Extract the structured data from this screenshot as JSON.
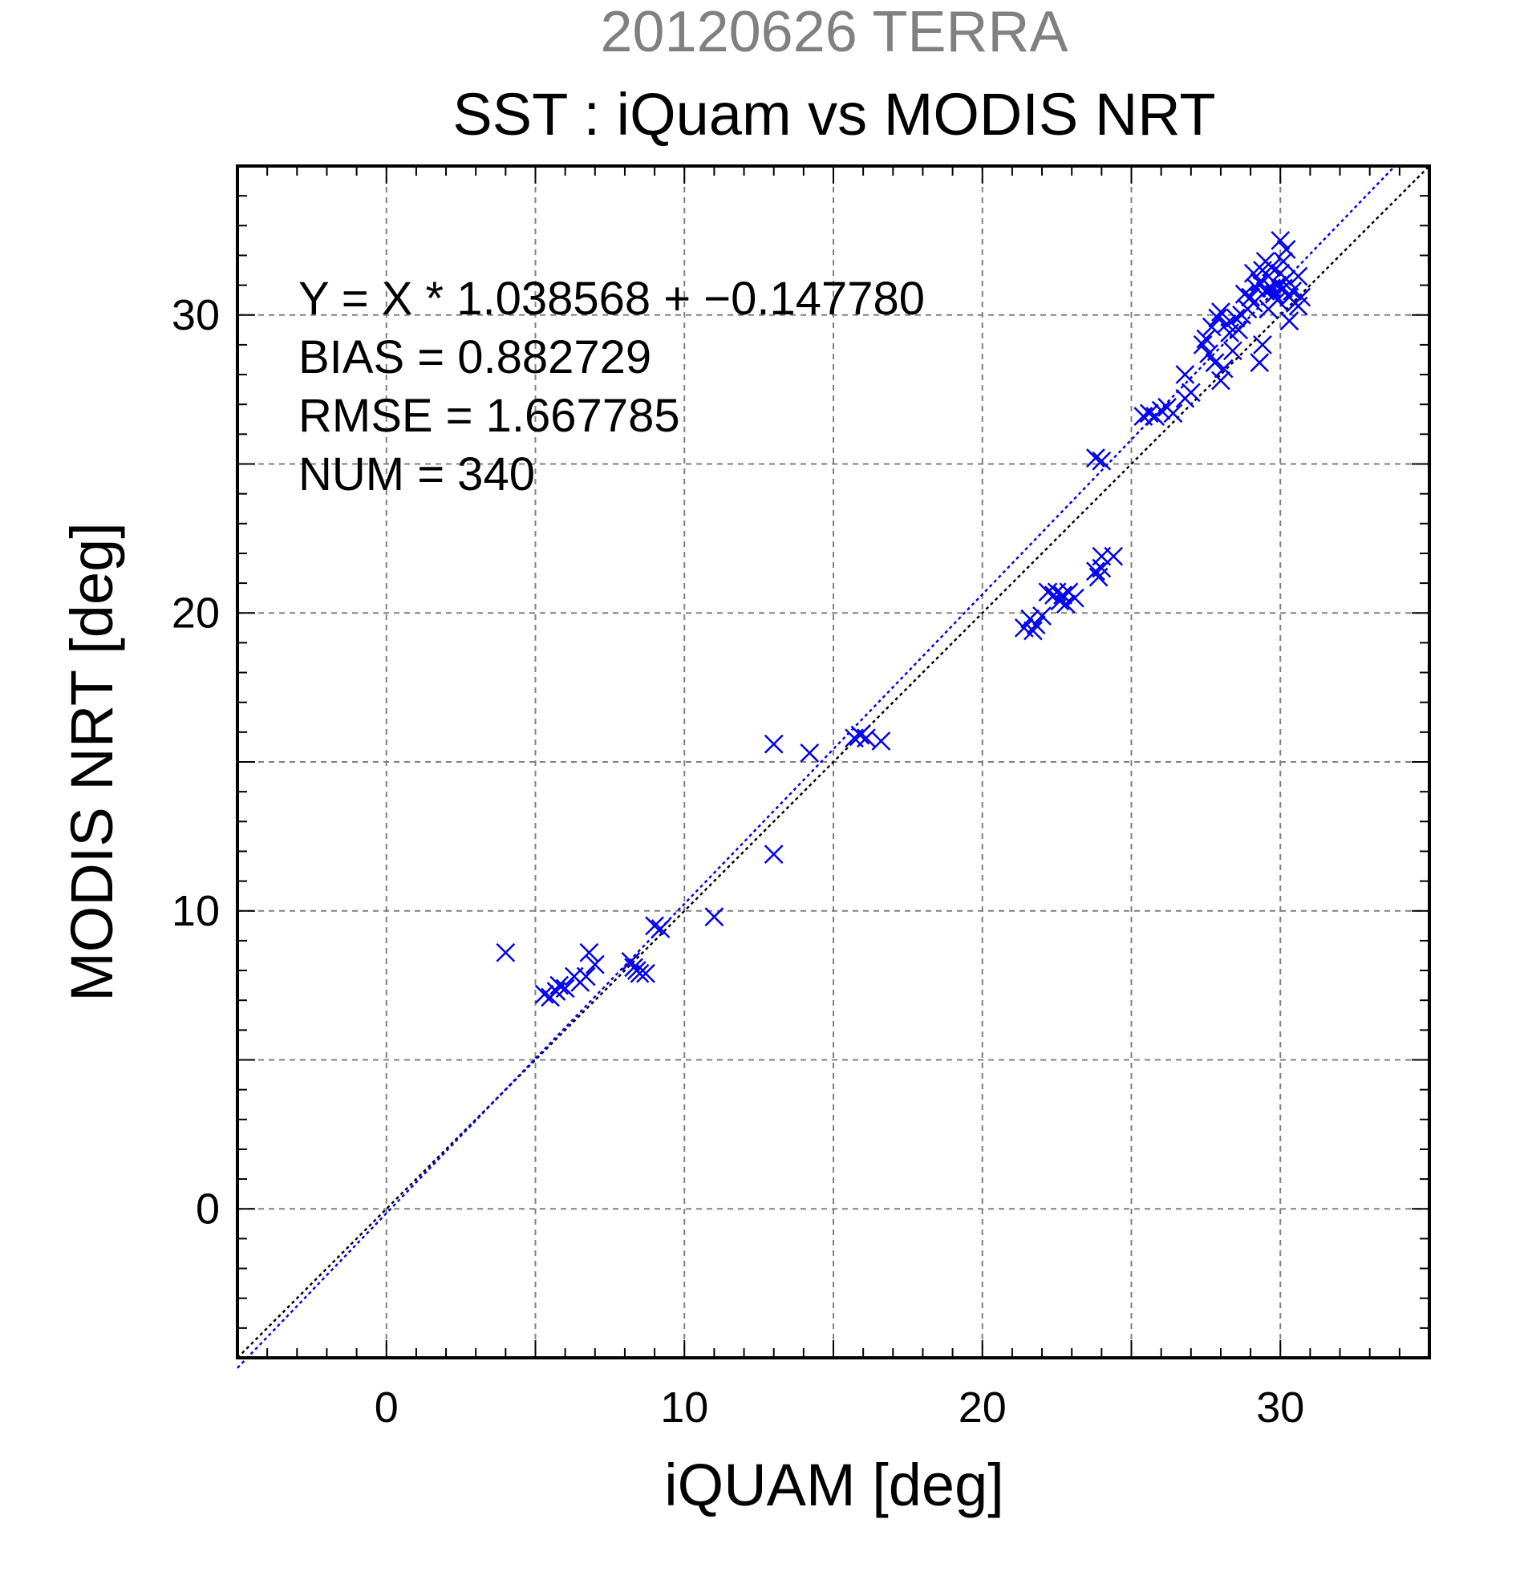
{
  "chart_data": {
    "type": "scatter",
    "title_top": "20120626 TERRA",
    "title": "SST : iQuam vs MODIS NRT",
    "xlabel": "iQUAM [deg]",
    "ylabel": "MODIS NRT [deg]",
    "xlim": [
      -5,
      35
    ],
    "ylim": [
      -5,
      35
    ],
    "xticks": [
      0,
      10,
      20,
      30
    ],
    "yticks": [
      0,
      10,
      20,
      30
    ],
    "grid": true,
    "annotations": [
      "Y = X * 1.038568 + −0.147780",
      "BIAS = 0.882729",
      "RMSE = 1.667785",
      "NUM = 340"
    ],
    "colors": {
      "points": "#0000ee",
      "fit_line": "#0000ee",
      "identity_line": "#000000",
      "title_top": "#808080",
      "grid": "#808080"
    },
    "fit": {
      "slope": 1.038568,
      "intercept": -0.14778
    },
    "series": [
      {
        "marker": "x",
        "points": [
          [
            4.0,
            8.6
          ],
          [
            5.3,
            7.2
          ],
          [
            5.5,
            7.1
          ],
          [
            5.7,
            7.3
          ],
          [
            5.8,
            7.5
          ],
          [
            6.0,
            7.4
          ],
          [
            6.3,
            7.8
          ],
          [
            6.5,
            7.6
          ],
          [
            6.7,
            7.8
          ],
          [
            6.8,
            8.6
          ],
          [
            7.0,
            8.2
          ],
          [
            8.2,
            8.3
          ],
          [
            8.4,
            8.0
          ],
          [
            8.5,
            7.9
          ],
          [
            8.7,
            7.9
          ],
          [
            8.3,
            8.1
          ],
          [
            9.0,
            9.5
          ],
          [
            9.2,
            9.4
          ],
          [
            11.0,
            9.8
          ],
          [
            13.0,
            15.6
          ],
          [
            13.0,
            11.9
          ],
          [
            14.2,
            15.3
          ],
          [
            15.7,
            15.8
          ],
          [
            15.9,
            15.9
          ],
          [
            16.1,
            15.8
          ],
          [
            16.6,
            15.7
          ],
          [
            21.4,
            19.5
          ],
          [
            21.6,
            19.8
          ],
          [
            21.8,
            19.6
          ],
          [
            21.7,
            19.4
          ],
          [
            22.0,
            19.9
          ],
          [
            22.2,
            20.7
          ],
          [
            22.4,
            20.6
          ],
          [
            22.5,
            20.7
          ],
          [
            22.6,
            20.4
          ],
          [
            22.7,
            20.6
          ],
          [
            22.9,
            20.7
          ],
          [
            23.1,
            20.5
          ],
          [
            22.8,
            20.3
          ],
          [
            23.8,
            21.4
          ],
          [
            23.9,
            21.2
          ],
          [
            24.0,
            21.5
          ],
          [
            24.0,
            21.9
          ],
          [
            24.4,
            21.9
          ],
          [
            23.8,
            25.2
          ],
          [
            24.0,
            25.1
          ],
          [
            25.4,
            26.6
          ],
          [
            25.6,
            26.7
          ],
          [
            25.8,
            26.6
          ],
          [
            26.0,
            26.8
          ],
          [
            26.2,
            26.9
          ],
          [
            26.4,
            26.7
          ],
          [
            26.8,
            27.2
          ],
          [
            27.0,
            27.4
          ],
          [
            26.8,
            28.0
          ],
          [
            27.4,
            29.0
          ],
          [
            27.5,
            29.2
          ],
          [
            27.6,
            28.7
          ],
          [
            27.7,
            29.6
          ],
          [
            27.8,
            28.4
          ],
          [
            27.9,
            29.9
          ],
          [
            28.0,
            30.1
          ],
          [
            28.0,
            27.8
          ],
          [
            28.1,
            28.2
          ],
          [
            28.2,
            29.7
          ],
          [
            28.3,
            29.4
          ],
          [
            28.4,
            28.8
          ],
          [
            28.5,
            29.9
          ],
          [
            28.6,
            29.5
          ],
          [
            28.7,
            30.0
          ],
          [
            28.9,
            30.2
          ],
          [
            29.0,
            30.6
          ],
          [
            29.1,
            30.4
          ],
          [
            29.2,
            30.9
          ],
          [
            29.3,
            31.1
          ],
          [
            29.4,
            31.5
          ],
          [
            29.5,
            30.8
          ],
          [
            29.6,
            31.3
          ],
          [
            29.7,
            31.6
          ],
          [
            29.8,
            30.7
          ],
          [
            29.9,
            31.0
          ],
          [
            30.0,
            31.4
          ],
          [
            30.1,
            30.9
          ],
          [
            30.2,
            31.2
          ],
          [
            30.3,
            30.6
          ],
          [
            30.4,
            30.8
          ],
          [
            30.5,
            30.4
          ],
          [
            30.6,
            31.3
          ],
          [
            30.0,
            32.5
          ],
          [
            30.2,
            32.2
          ],
          [
            29.3,
            28.4
          ],
          [
            29.4,
            29.0
          ],
          [
            30.3,
            29.8
          ],
          [
            30.6,
            30.3
          ],
          [
            29.6,
            30.2
          ],
          [
            29.9,
            30.5
          ],
          [
            29.5,
            31.8
          ],
          [
            29.1,
            31.4
          ],
          [
            28.8,
            30.7
          ],
          [
            30.7,
            30.6
          ],
          [
            30.1,
            31.8
          ],
          [
            29.7,
            30.9
          ]
        ]
      }
    ]
  }
}
